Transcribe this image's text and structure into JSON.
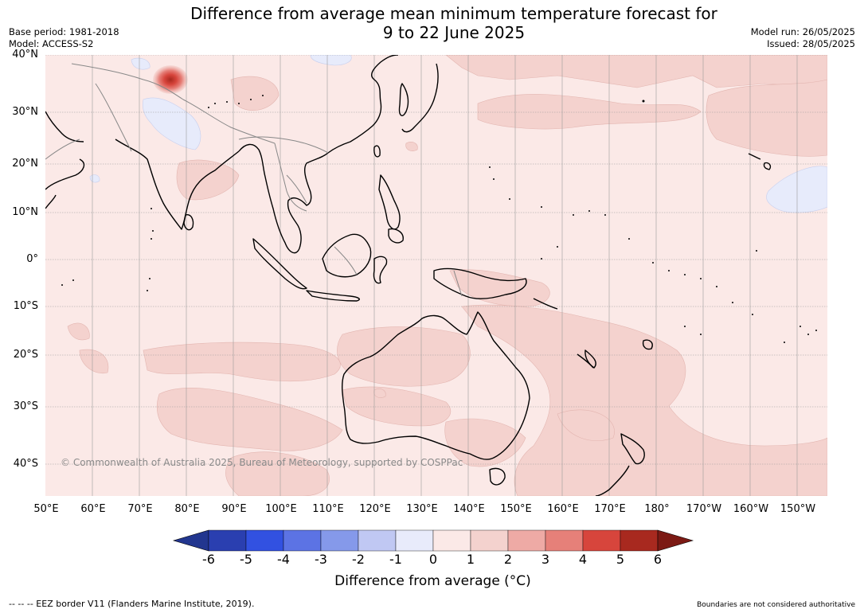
{
  "title": {
    "line1": "Difference from average mean minimum temperature forecast for",
    "line2": "9 to 22 June 2025"
  },
  "meta": {
    "base_period": "Base period: 1981-2018",
    "model": "Model: ACCESS-S2",
    "model_run": "Model run: 26/05/2025",
    "issued": "Issued: 28/05/2025"
  },
  "map": {
    "lat_labels": [
      "40°N",
      "30°N",
      "20°N",
      "10°N",
      "0°",
      "10°S",
      "20°S",
      "30°S",
      "40°S"
    ],
    "lon_labels": [
      "50°E",
      "60°E",
      "70°E",
      "80°E",
      "90°E",
      "100°E",
      "110°E",
      "120°E",
      "130°E",
      "140°E",
      "150°E",
      "160°E",
      "170°E",
      "180°",
      "170°W",
      "160°W",
      "150°W"
    ],
    "copyright": "© Commonwealth of Australia 2025, Bureau of Meteorology, supported by COSPPac",
    "colors": {
      "base_anomaly_0_1": "#fbe9e7",
      "anomaly_1_2": "#f4d2ce",
      "anomaly_minus1_0": "#e7ebfb"
    }
  },
  "colorbar": {
    "ticks": [
      "-6",
      "-5",
      "-4",
      "-3",
      "-2",
      "-1",
      "0",
      "1",
      "2",
      "3",
      "4",
      "5",
      "6"
    ],
    "colors": [
      "#22368f",
      "#2a3fb0",
      "#3251e1",
      "#5c73e4",
      "#8599ea",
      "#c0c8f3",
      "#e8ebfb",
      "#fbe9e7",
      "#f4d2ce",
      "#eeaaa5",
      "#e68079",
      "#d7453c",
      "#a8291f",
      "#7c1a14"
    ],
    "label": "Difference from average (°C)"
  },
  "footer": {
    "eez": "--  --  -- EEZ border V11 (Flanders Marine Institute, 2019).",
    "boundaries": "Boundaries are not considered authoritative"
  }
}
